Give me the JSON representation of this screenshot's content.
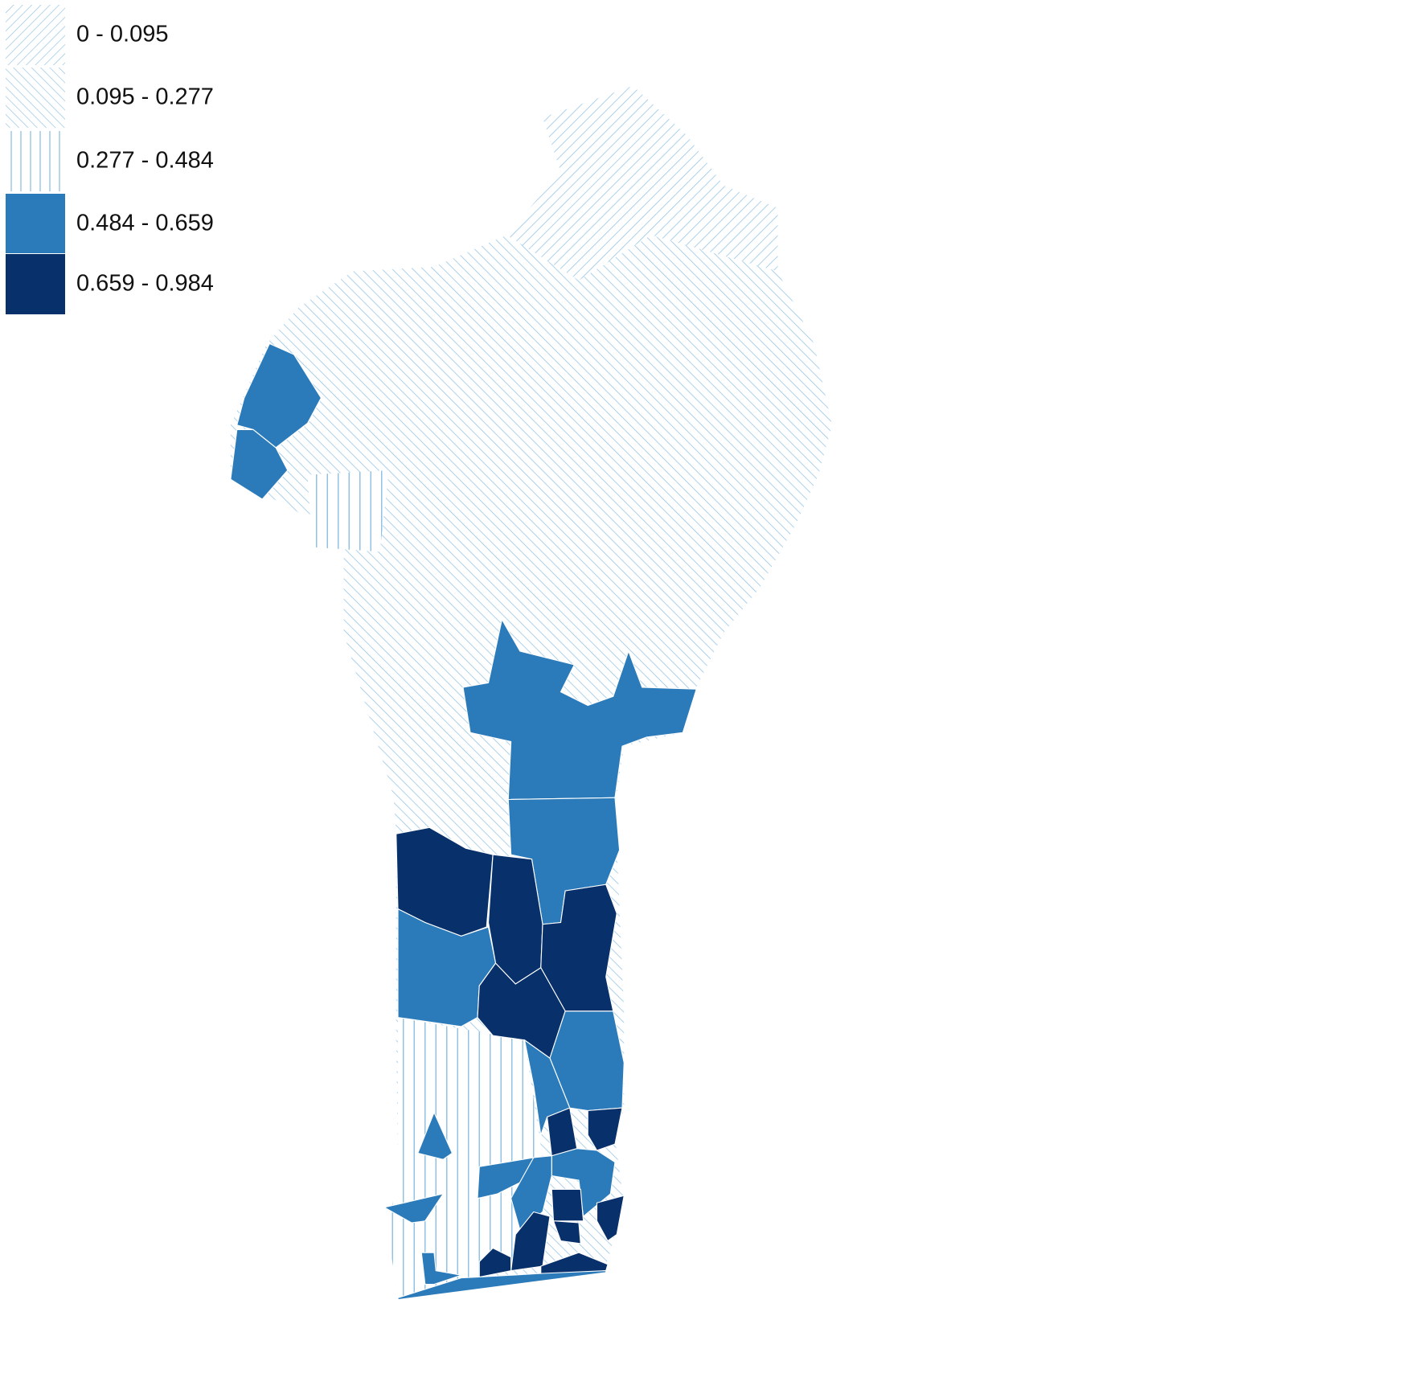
{
  "legend": {
    "items": [
      {
        "label": "0 - 0.095"
      },
      {
        "label": "0.095 - 0.277"
      },
      {
        "label": "0.277 - 0.484"
      },
      {
        "label": "0.484 - 0.659"
      },
      {
        "label": "0.659 - 0.984"
      }
    ]
  }
}
